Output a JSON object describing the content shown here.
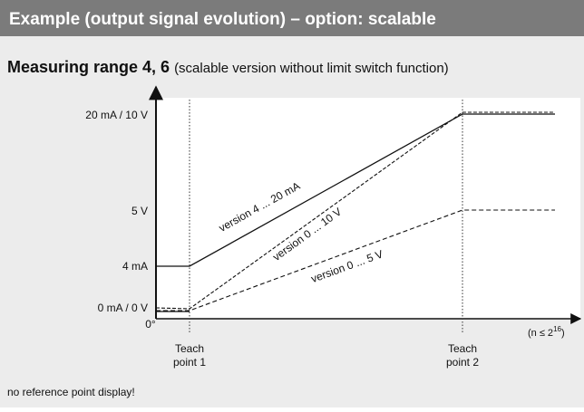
{
  "header": {
    "title": "Example (output signal evolution) – option: scalable"
  },
  "subtitle": {
    "bold": "Measuring range 4, 6",
    "normal": "(scalable version without limit switch function)"
  },
  "diagram": {
    "y_labels": [
      "20 mA / 10 V",
      "5 V",
      "4 mA",
      "0 mA / 0 V"
    ],
    "origin_label": "0°",
    "x_note": {
      "before": "(n ≤ 2",
      "sup": "16",
      "after": ")"
    },
    "teach_points": [
      {
        "line1": "Teach",
        "line2": "point 1"
      },
      {
        "line1": "Teach",
        "line2": "point 2"
      }
    ],
    "curves": [
      "version 4 ... 20 mA",
      "version 0 ... 10 V",
      "version 0 ... 5 V"
    ]
  },
  "footnote": "no reference point display!"
}
